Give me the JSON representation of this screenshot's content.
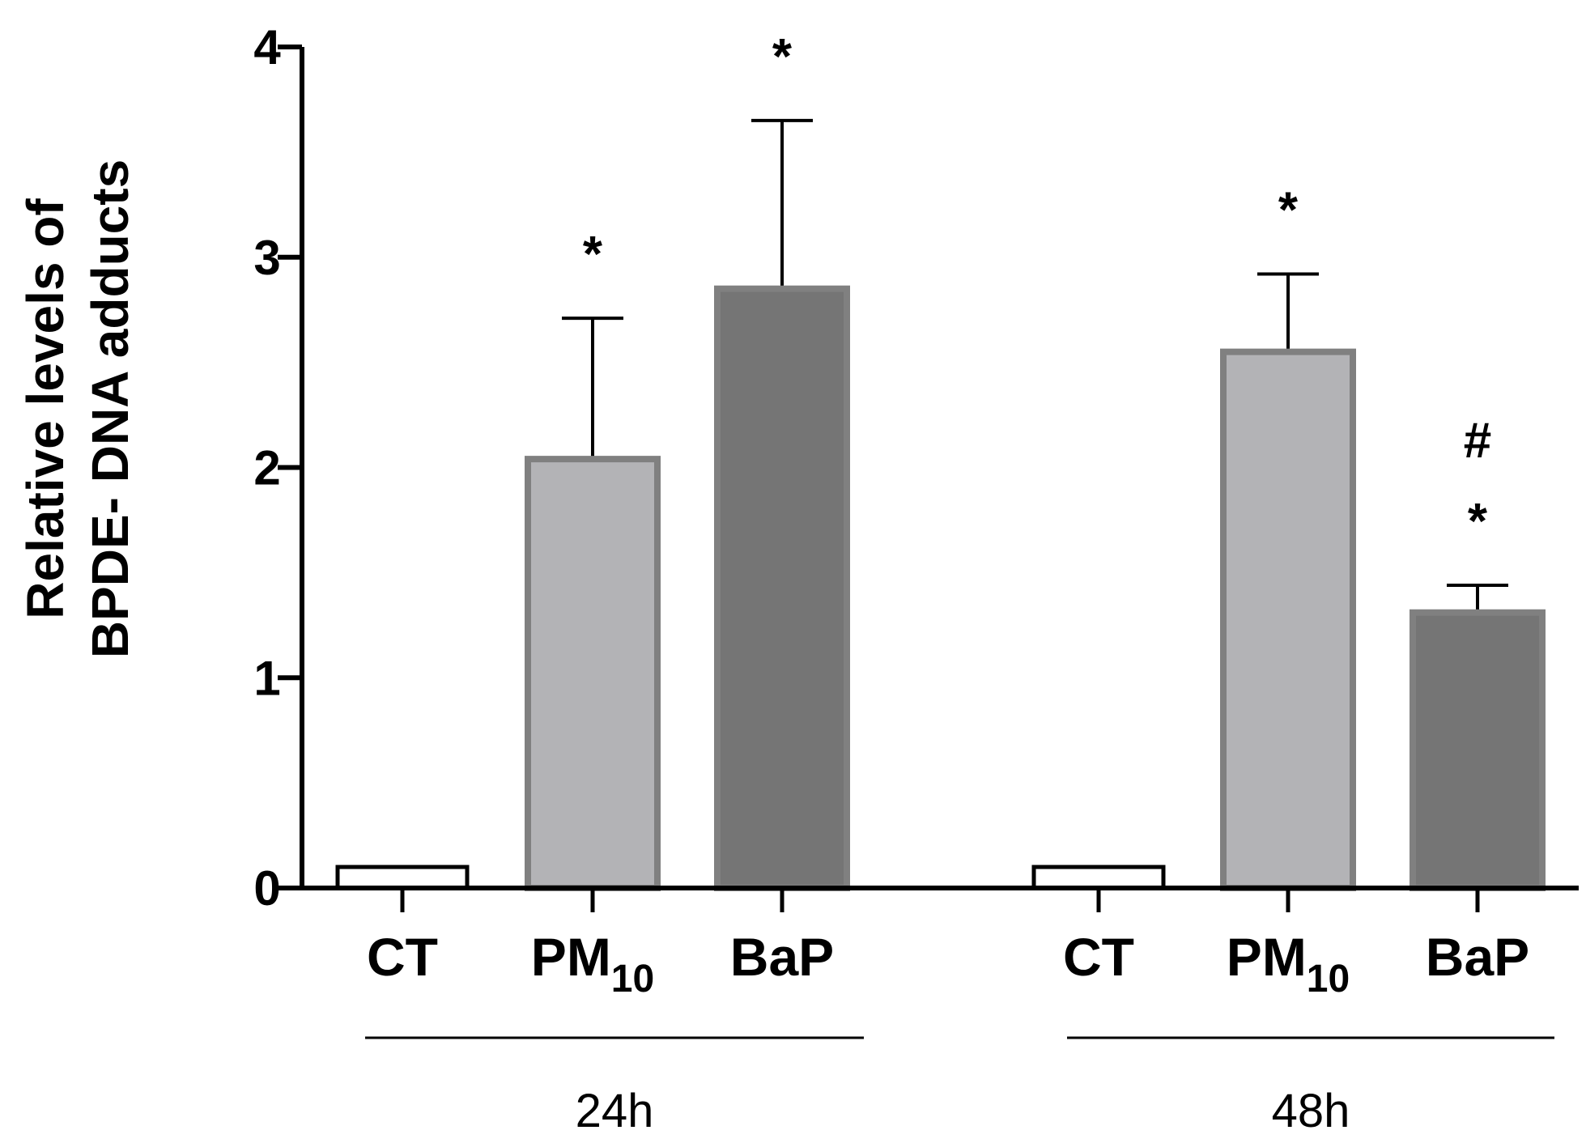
{
  "chart_data": {
    "type": "bar",
    "ylabel_line1": "Relative levels of",
    "ylabel_line2": "BPDE- DNA adducts",
    "ylim": [
      0,
      4
    ],
    "yticks": [
      "0",
      "1",
      "2",
      "3",
      "4"
    ],
    "groups": [
      {
        "label": "24h",
        "bars": [
          {
            "category": "CT",
            "sub": "",
            "value": 0.1,
            "error": 0,
            "color": "#ffffff",
            "annotations": []
          },
          {
            "category": "PM",
            "sub": "10",
            "value": 2.04,
            "error": 0.67,
            "color": "#b3b3b6",
            "annotations": [
              "*"
            ]
          },
          {
            "category": "BaP",
            "sub": "",
            "value": 2.85,
            "error": 0.8,
            "color": "#757575",
            "annotations": [
              "*"
            ]
          }
        ]
      },
      {
        "label": "48h",
        "bars": [
          {
            "category": "CT",
            "sub": "",
            "value": 0.1,
            "error": 0,
            "color": "#ffffff",
            "annotations": []
          },
          {
            "category": "PM",
            "sub": "10",
            "value": 2.55,
            "error": 0.37,
            "color": "#b3b3b6",
            "annotations": [
              "*"
            ]
          },
          {
            "category": "BaP",
            "sub": "",
            "value": 1.31,
            "error": 0.13,
            "color": "#757575",
            "annotations": [
              "*",
              "#"
            ]
          }
        ]
      }
    ],
    "colors": {
      "edge": "#808080",
      "axis": "#000000"
    }
  }
}
